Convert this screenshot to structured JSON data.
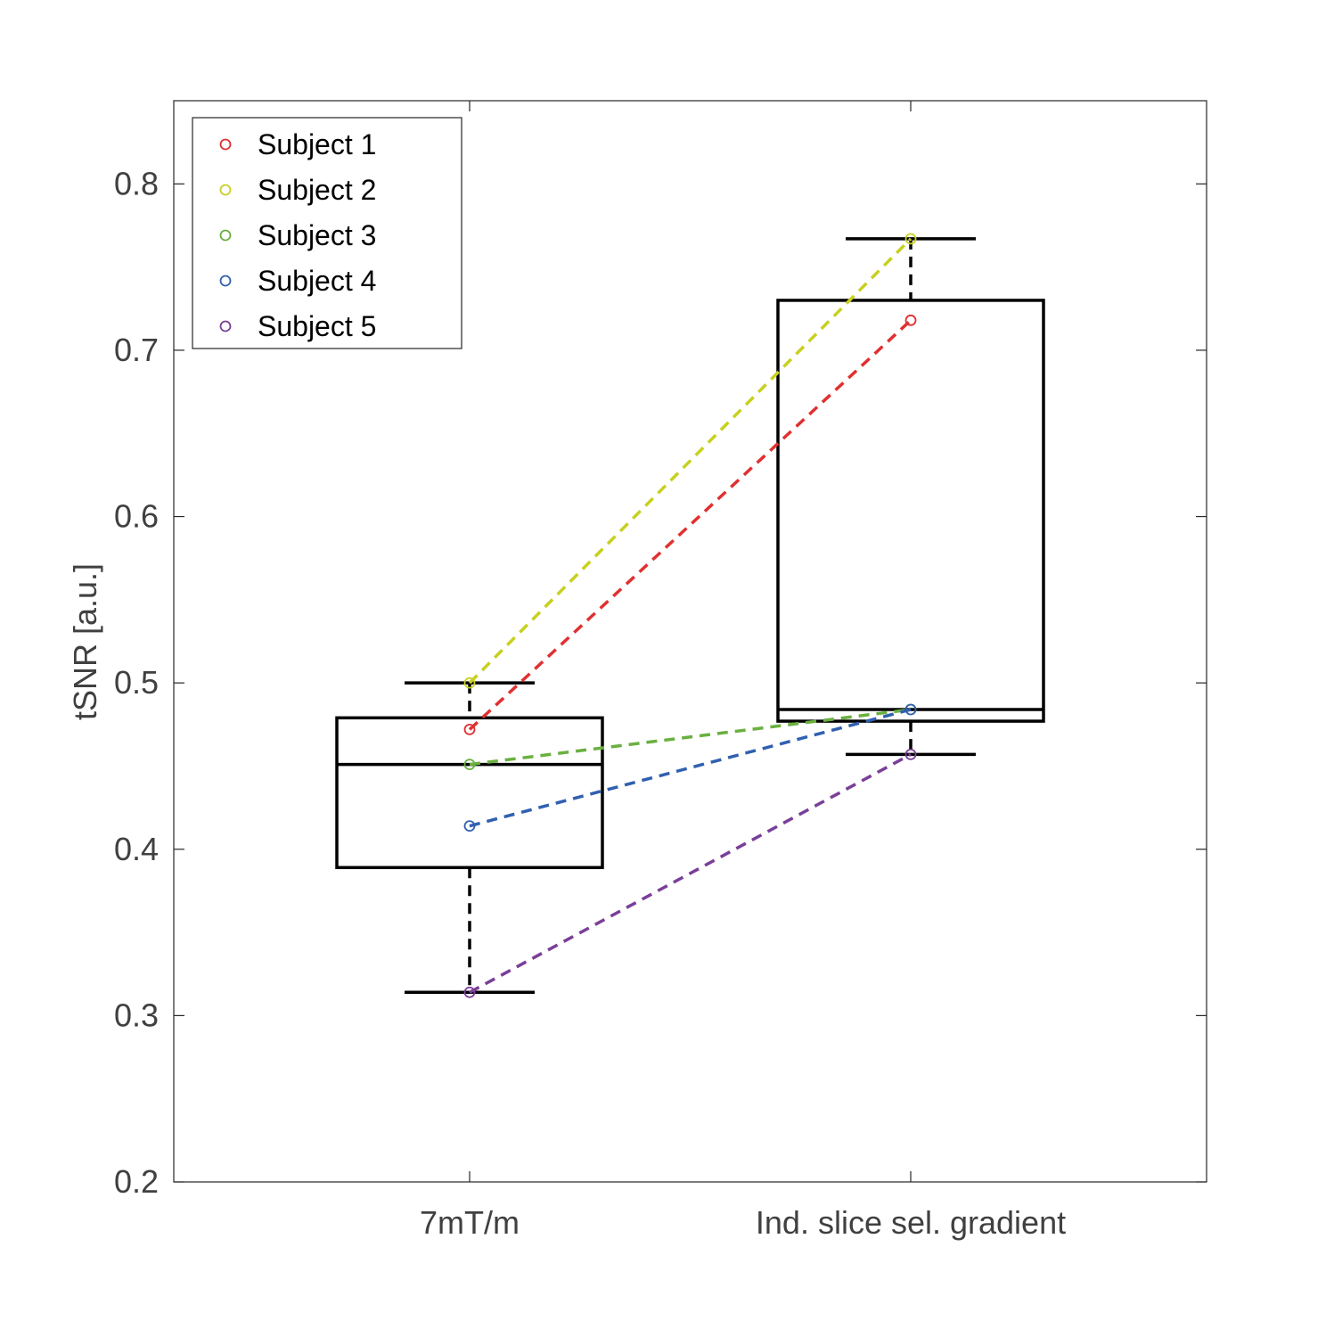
{
  "chart_data": {
    "type": "box",
    "ylabel": "tSNR [a.u.]",
    "xlabel": "",
    "ylim": [
      0.2,
      0.85
    ],
    "yticks": [
      0.2,
      0.3,
      0.4,
      0.5,
      0.6,
      0.7,
      0.8
    ],
    "ytick_labels": [
      "0.2",
      "0.3",
      "0.4",
      "0.5",
      "0.6",
      "0.7",
      "0.8"
    ],
    "categories": [
      "7mT/m",
      "Ind. slice sel. gradient"
    ],
    "boxes": [
      {
        "category": "7mT/m",
        "whisker_low": 0.314,
        "q1": 0.389,
        "median": 0.451,
        "q3": 0.479,
        "whisker_high": 0.5
      },
      {
        "category": "Ind. slice sel. gradient",
        "whisker_low": 0.457,
        "q1": 0.477,
        "median": 0.484,
        "q3": 0.73,
        "whisker_high": 0.767
      }
    ],
    "series": [
      {
        "name": "Subject 1",
        "color": "#e03030",
        "values": [
          0.472,
          0.718
        ]
      },
      {
        "name": "Subject 2",
        "color": "#c8d020",
        "values": [
          0.5,
          0.767
        ]
      },
      {
        "name": "Subject 3",
        "color": "#6ab040",
        "values": [
          0.451,
          0.484
        ]
      },
      {
        "name": "Subject 4",
        "color": "#3060b0",
        "values": [
          0.414,
          0.484
        ]
      },
      {
        "name": "Subject 5",
        "color": "#7a3f98",
        "values": [
          0.314,
          0.457
        ]
      }
    ],
    "legend_position": "top-left",
    "grid": false
  }
}
